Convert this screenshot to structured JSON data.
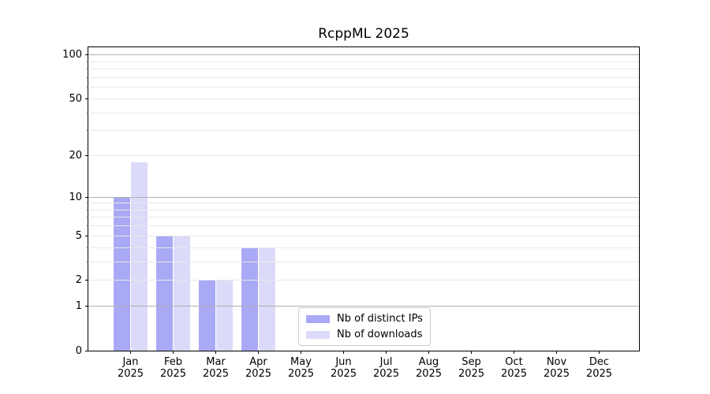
{
  "title": "RcppML 2025",
  "chart_data": {
    "type": "bar",
    "title": "RcppML 2025",
    "categories": [
      "Jan 2025",
      "Feb 2025",
      "Mar 2025",
      "Apr 2025",
      "May 2025",
      "Jun 2025",
      "Jul 2025",
      "Aug 2025",
      "Sep 2025",
      "Oct 2025",
      "Nov 2025",
      "Dec 2025"
    ],
    "series": [
      {
        "name": "Nb of distinct IPs",
        "color": "#a9a9f5",
        "values": [
          10,
          5,
          2,
          4,
          0,
          0,
          0,
          0,
          0,
          0,
          0,
          0
        ]
      },
      {
        "name": "Nb of downloads",
        "color": "#dbdbf9",
        "values": [
          18,
          5,
          2,
          4,
          0,
          0,
          0,
          0,
          0,
          0,
          0,
          0
        ]
      }
    ],
    "xlabel": "",
    "ylabel": "",
    "yscale": "log1p",
    "ylim": [
      0,
      113
    ],
    "yticks_labeled": [
      0,
      1,
      2,
      5,
      10,
      20,
      50,
      100
    ],
    "grid_major": [
      1,
      10,
      100
    ],
    "grid_minor": [
      2,
      3,
      4,
      5,
      6,
      7,
      8,
      9,
      20,
      30,
      40,
      50,
      60,
      70,
      80,
      90
    ],
    "grid": "on",
    "legend_position": "lower center"
  }
}
